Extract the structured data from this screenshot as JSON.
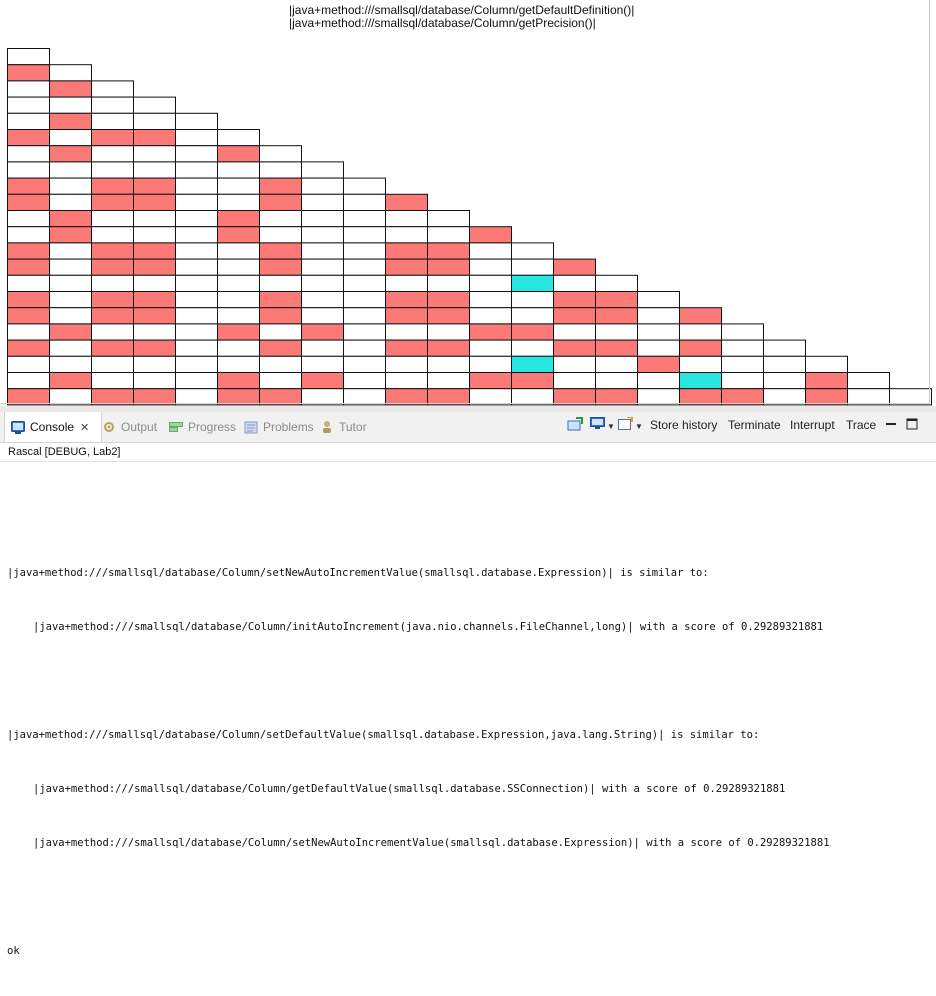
{
  "visualization": {
    "header_lines": [
      "|java+method:///smallsql/database/Column/getDefaultDefinition()|",
      "|java+method:///smallsql/database/Column/getPrecision()|"
    ],
    "grid_colors": {
      "empty": "#ffffff",
      "similar": "#fb7a78",
      "highlight": "#27e7e0",
      "border": "#111111"
    },
    "triangle_rows": [
      "",
      "R",
      "WR",
      "WWW",
      "WRWW",
      "RWRRW",
      "WRWWWR",
      "WWWWWWW",
      "RWRRWWRWW",
      "RWRRWWRWWR",
      "WRWWWRWWWWW",
      "WRWWWRWWWWWR",
      "RWRRWWRWWRRWW",
      "RWRRWWRWWRRWWR",
      "WWWWWWWWWWWWCWW",
      "RWRRWWRWWRRWWRRW",
      "RWRRWWRWWRRWWRRWR",
      "WRWWWRWRWWWRRWWWWW",
      "RWRRWWRWWRRWWRRWRWW",
      "WWWWWWWWWWWWCWWRWWWW",
      "WRWWWRWRWWWRRWWWCWWRWC",
      "RWRRWRRWWRRWWRRWRRWRWW"
    ]
  },
  "console": {
    "tabs": [
      {
        "label": "Console",
        "icon": "console-icon",
        "active": true
      },
      {
        "label": "Output",
        "icon": "output-icon",
        "active": false
      },
      {
        "label": "Progress",
        "icon": "progress-icon",
        "active": false
      },
      {
        "label": "Problems",
        "icon": "problems-icon",
        "active": false
      },
      {
        "label": "Tutor",
        "icon": "tutor-icon",
        "active": false
      }
    ],
    "actions": {
      "store_history": "Store history",
      "terminate": "Terminate",
      "interrupt": "Interrupt",
      "trace": "Trace"
    },
    "session_label": "Rascal [DEBUG, Lab2]",
    "output_lines": [
      {
        "text": "",
        "indent": false
      },
      {
        "text": "|java+method:///smallsql/database/Column/setNewAutoIncrementValue(smallsql.database.Expression)| is similar to:",
        "indent": false
      },
      {
        "text": "|java+method:///smallsql/database/Column/initAutoIncrement(java.nio.channels.FileChannel,long)| with a score of 0.29289321881",
        "indent": true
      },
      {
        "text": "",
        "indent": false
      },
      {
        "text": "|java+method:///smallsql/database/Column/setDefaultValue(smallsql.database.Expression,java.lang.String)| is similar to:",
        "indent": false
      },
      {
        "text": "|java+method:///smallsql/database/Column/getDefaultValue(smallsql.database.SSConnection)| with a score of 0.29289321881",
        "indent": true
      },
      {
        "text": "|java+method:///smallsql/database/Column/setNewAutoIncrementValue(smallsql.database.Expression)| with a score of 0.29289321881",
        "indent": true
      },
      {
        "text": "",
        "indent": false
      },
      {
        "text": "ok",
        "indent": false
      }
    ]
  }
}
